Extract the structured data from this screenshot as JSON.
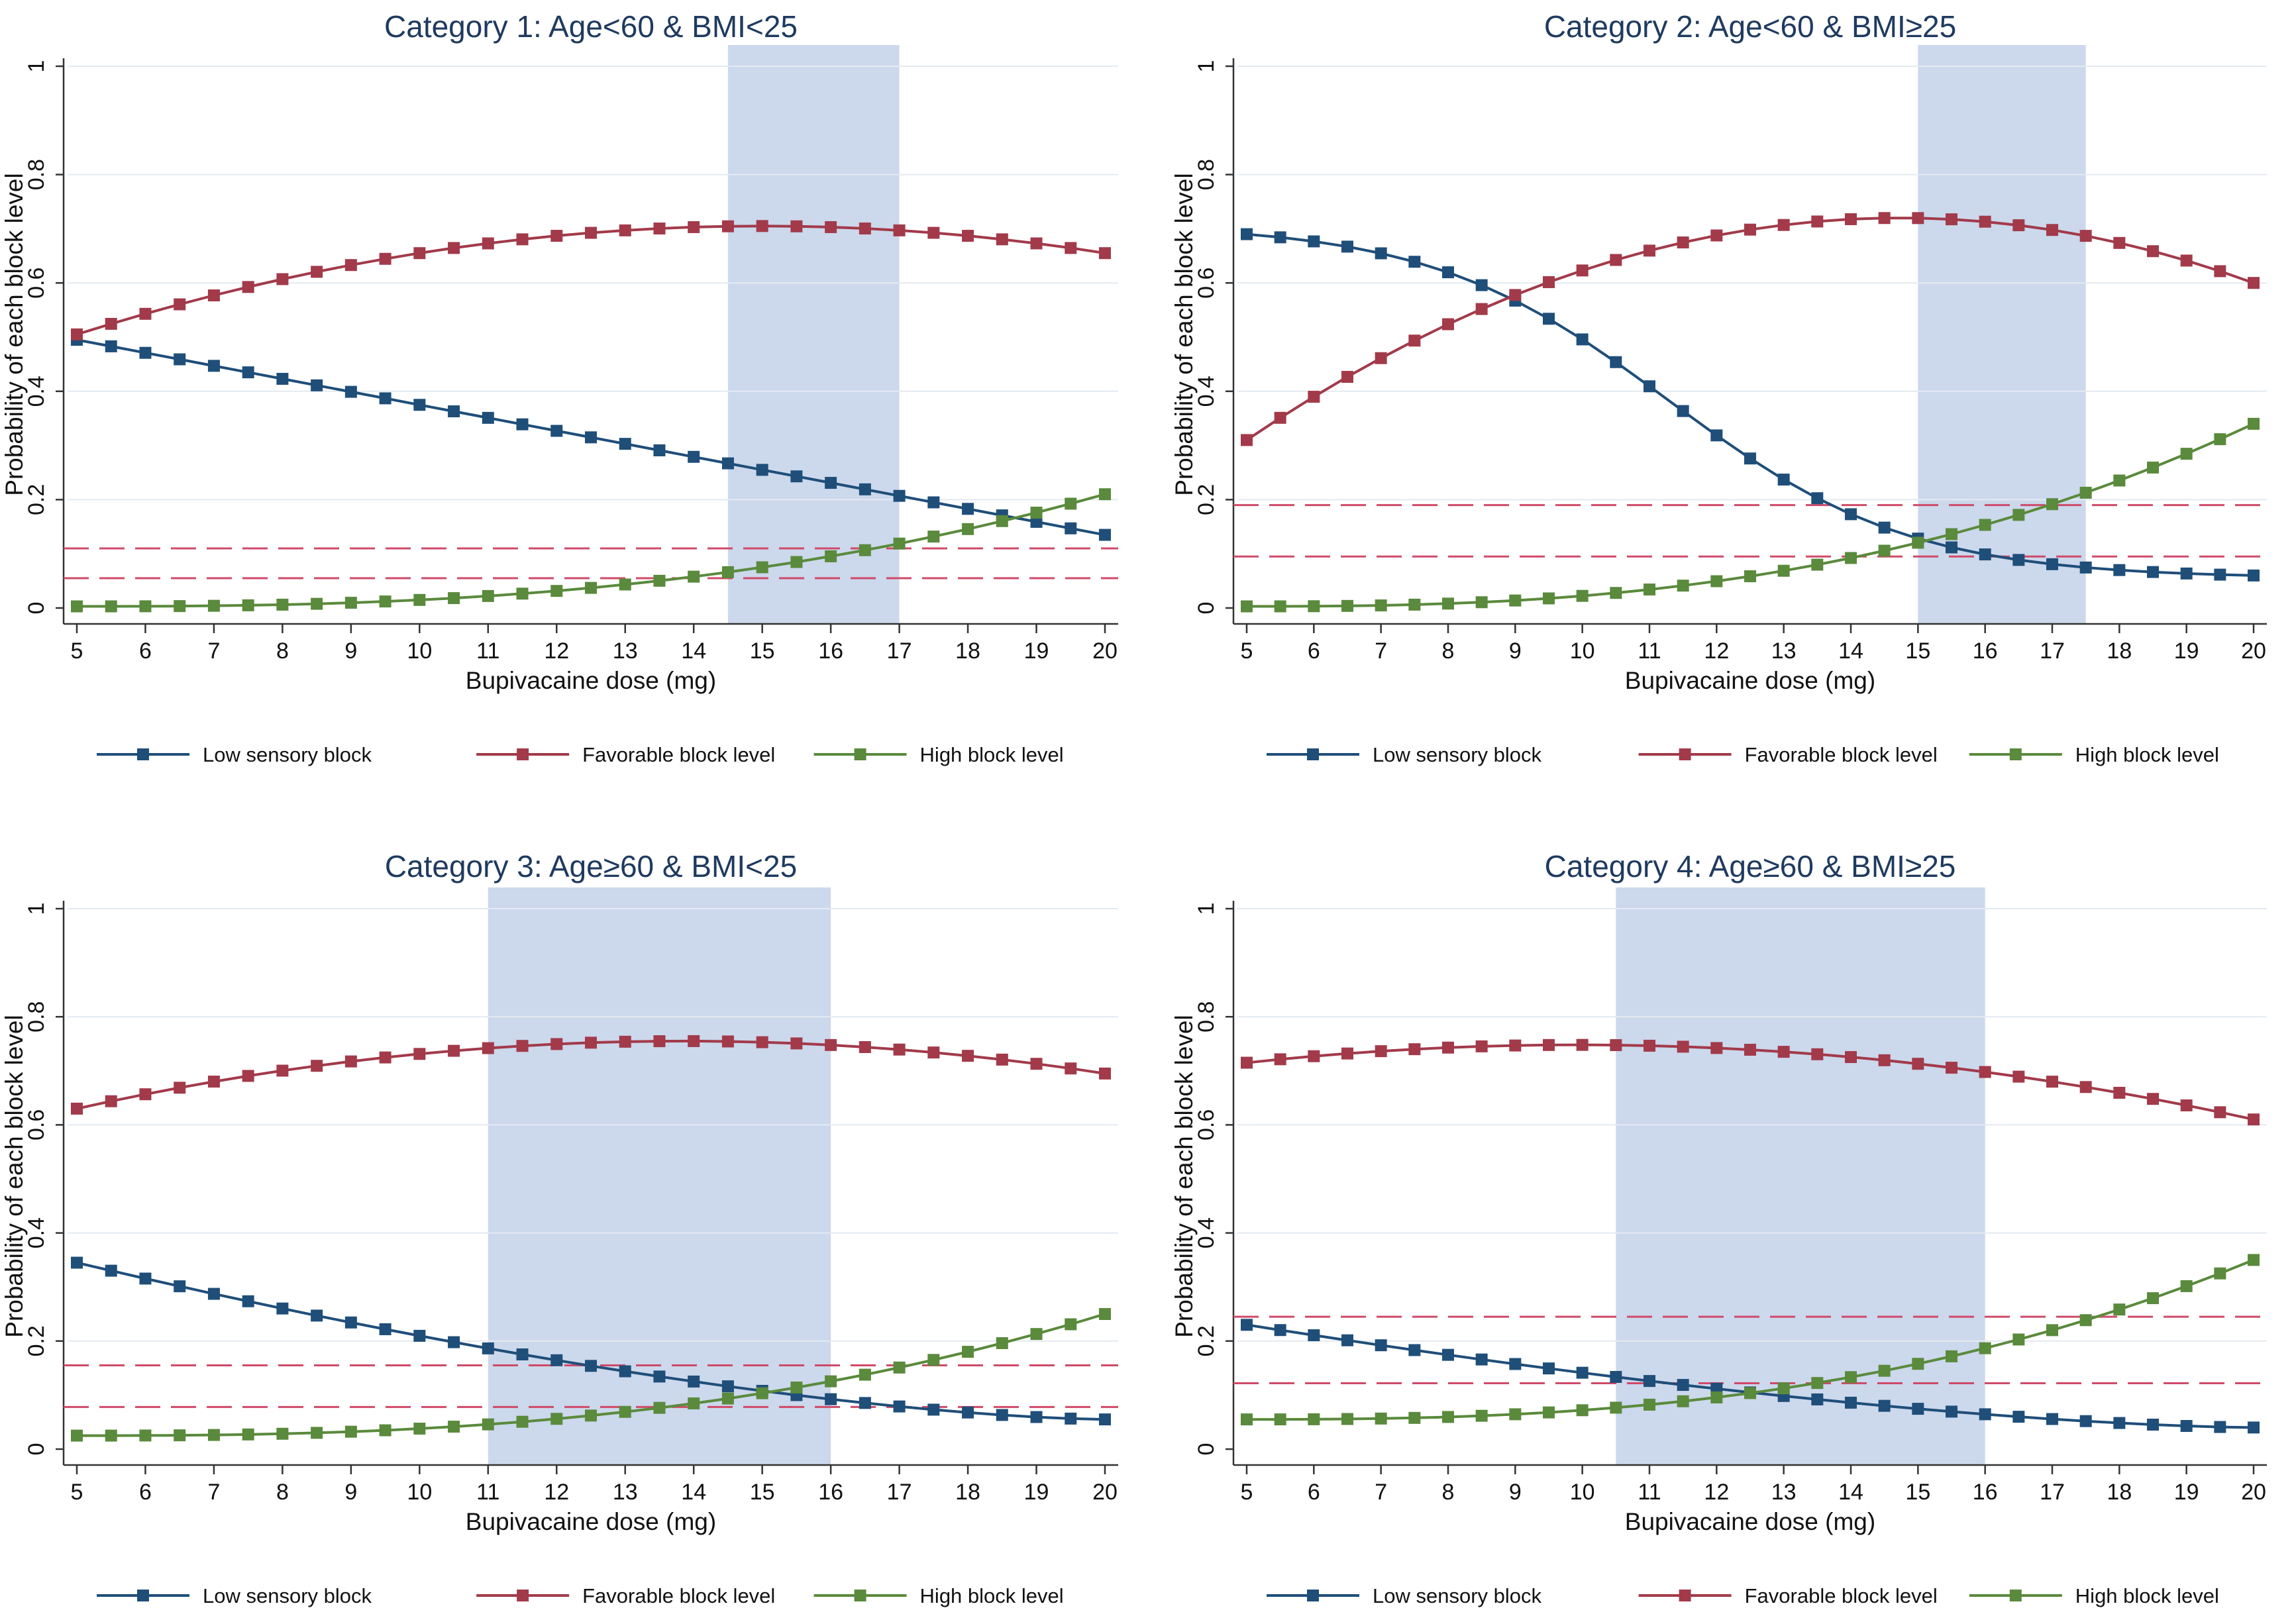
{
  "colors": {
    "low": "#1f4e79",
    "favorable": "#a23a4a",
    "high": "#5a8a3c",
    "band": "#ccd8ec",
    "threshold": "#cf4a69",
    "grid": "#e3eaf1",
    "title": "#1f3a5f"
  },
  "chart_data": [
    {
      "type": "line",
      "title": "Category 1: Age<60 & BMI<25",
      "xlabel": "Bupivacaine dose (mg)",
      "ylabel": "Probability of each block level",
      "xlim": [
        5,
        20
      ],
      "ylim": [
        0,
        1
      ],
      "xticks": [
        5,
        6,
        7,
        8,
        9,
        10,
        11,
        12,
        13,
        14,
        15,
        16,
        17,
        18,
        19,
        20
      ],
      "yticks": [
        0,
        0.2,
        0.4,
        0.6,
        0.8,
        1
      ],
      "band": [
        14.5,
        17
      ],
      "thresholds": [
        0.11,
        0.055
      ],
      "grid": true,
      "legend_position": "bottom",
      "series": [
        {
          "name": "Low sensory block",
          "start": 0.495,
          "end": 0.135,
          "shape": "linear",
          "mid": 0
        },
        {
          "name": "Favorable block level",
          "start": 0.505,
          "end": 0.655,
          "shape": "arc",
          "mid": 0.705
        },
        {
          "name": "High block level",
          "start": 0.003,
          "end": 0.21,
          "shape": "convex",
          "mid": 0.055
        }
      ]
    },
    {
      "type": "line",
      "title": "Category 2: Age<60 & BMI≥25",
      "xlabel": "Bupivacaine dose (mg)",
      "ylabel": "Probability of each block level",
      "xlim": [
        5,
        20
      ],
      "ylim": [
        0,
        1
      ],
      "xticks": [
        5,
        6,
        7,
        8,
        9,
        10,
        11,
        12,
        13,
        14,
        15,
        16,
        17,
        18,
        19,
        20
      ],
      "yticks": [
        0,
        0.2,
        0.4,
        0.6,
        0.8,
        1
      ],
      "band": [
        15,
        17.5
      ],
      "thresholds": [
        0.19,
        0.095
      ],
      "grid": true,
      "legend_position": "bottom",
      "series": [
        {
          "name": "Low sensory block",
          "start": 0.69,
          "end": 0.06,
          "shape": "sigmoid",
          "mid": 0
        },
        {
          "name": "Favorable block level",
          "start": 0.31,
          "end": 0.6,
          "shape": "arc",
          "mid": 0.72
        },
        {
          "name": "High block level",
          "start": 0.003,
          "end": 0.34,
          "shape": "convex",
          "mid": 0.09
        }
      ]
    },
    {
      "type": "line",
      "title": "Category 3: Age≥60 & BMI<25",
      "xlabel": "Bupivacaine dose (mg)",
      "ylabel": "Probability of each block level",
      "xlim": [
        5,
        20
      ],
      "ylim": [
        0,
        1
      ],
      "xticks": [
        5,
        6,
        7,
        8,
        9,
        10,
        11,
        12,
        13,
        14,
        15,
        16,
        17,
        18,
        19,
        20
      ],
      "yticks": [
        0,
        0.2,
        0.4,
        0.6,
        0.8,
        1
      ],
      "band": [
        11,
        16
      ],
      "thresholds": [
        0.155,
        0.078
      ],
      "grid": true,
      "legend_position": "bottom",
      "series": [
        {
          "name": "Low sensory block",
          "start": 0.345,
          "end": 0.055,
          "shape": "convexdown",
          "mid": 0
        },
        {
          "name": "Favorable block level",
          "start": 0.63,
          "end": 0.695,
          "shape": "arc",
          "mid": 0.755
        },
        {
          "name": "High block level",
          "start": 0.025,
          "end": 0.25,
          "shape": "convex",
          "mid": 0.115
        }
      ]
    },
    {
      "type": "line",
      "title": "Category 4: Age≥60 & BMI≥25",
      "xlabel": "Bupivacaine dose (mg)",
      "ylabel": "Probability of each block level",
      "xlim": [
        5,
        20
      ],
      "ylim": [
        0,
        1
      ],
      "xticks": [
        5,
        6,
        7,
        8,
        9,
        10,
        11,
        12,
        13,
        14,
        15,
        16,
        17,
        18,
        19,
        20
      ],
      "yticks": [
        0,
        0.2,
        0.4,
        0.6,
        0.8,
        1
      ],
      "band": [
        10.5,
        16
      ],
      "thresholds": [
        0.245,
        0.122
      ],
      "grid": true,
      "legend_position": "bottom",
      "series": [
        {
          "name": "Low sensory block",
          "start": 0.23,
          "end": 0.04,
          "shape": "convexdown",
          "mid": 0
        },
        {
          "name": "Favorable block level",
          "start": 0.715,
          "end": 0.61,
          "shape": "arc",
          "mid": 0.748
        },
        {
          "name": "High block level",
          "start": 0.055,
          "end": 0.35,
          "shape": "convex",
          "mid": 0.15
        }
      ]
    }
  ]
}
